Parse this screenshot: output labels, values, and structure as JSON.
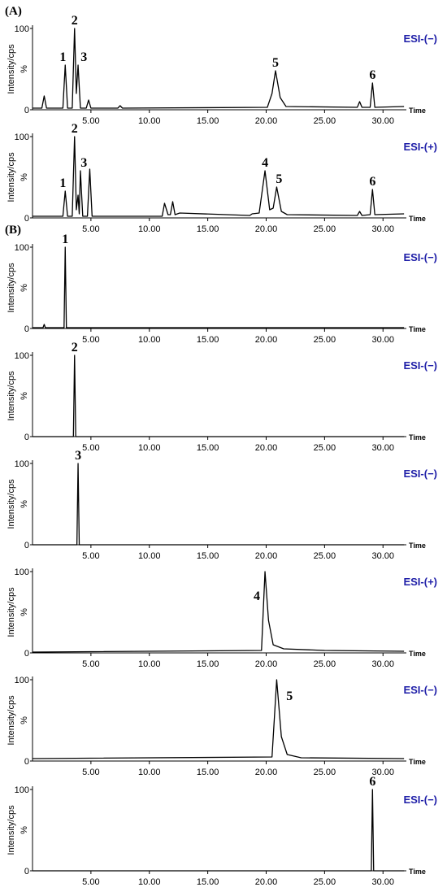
{
  "chart_data": [
    {
      "type": "line",
      "panel_label": "(A)",
      "mode": "ESI-(−)",
      "mode_color": "#1f1fa8",
      "ylabel": "Intensity/cps",
      "yunit": "%",
      "xlabel": "Time",
      "color": "#000000",
      "x": [
        0,
        0.8,
        1.0,
        1.2,
        2.6,
        2.8,
        3.0,
        3.4,
        3.6,
        3.75,
        3.9,
        4.1,
        4.6,
        4.8,
        5.0,
        7.3,
        7.5,
        7.7,
        20.1,
        20.5,
        20.8,
        21.2,
        21.7,
        27.8,
        28.0,
        28.2,
        28.9,
        29.1,
        29.3,
        31.8
      ],
      "values": [
        2,
        2,
        17,
        2,
        2,
        55,
        2,
        2,
        100,
        20,
        55,
        2,
        2,
        12,
        2,
        2,
        5,
        2,
        3,
        20,
        48,
        15,
        4,
        3,
        10,
        3,
        3,
        33,
        3,
        4
      ],
      "annotations": [
        {
          "text": "1",
          "x": 2.6,
          "y": 55
        },
        {
          "text": "2",
          "x": 3.6,
          "y": 100
        },
        {
          "text": "3",
          "x": 4.4,
          "y": 55
        },
        {
          "text": "5",
          "x": 20.8,
          "y": 48
        },
        {
          "text": "6",
          "x": 29.1,
          "y": 33
        }
      ],
      "xlim": [
        0,
        32
      ],
      "ylim": [
        0,
        100
      ],
      "yticks": [
        0,
        100
      ],
      "xticks": [
        {
          "value": 5,
          "label": "5.00"
        },
        {
          "value": 10,
          "label": "10.00"
        },
        {
          "value": 15,
          "label": "15.00"
        },
        {
          "value": 20,
          "label": "20.00"
        },
        {
          "value": 25,
          "label": "25.00"
        },
        {
          "value": 30,
          "label": "30.00"
        }
      ]
    },
    {
      "type": "line",
      "mode": "ESI-(+)",
      "mode_color": "#1f1fa8",
      "ylabel": "Intensity/cps",
      "yunit": "%",
      "xlabel": "Time",
      "color": "#000000",
      "x": [
        0,
        2.6,
        2.8,
        3.0,
        3.4,
        3.6,
        3.75,
        3.9,
        4.0,
        4.1,
        4.3,
        4.7,
        4.9,
        5.1,
        11.1,
        11.3,
        11.6,
        11.8,
        12.0,
        12.2,
        12.6,
        18.6,
        18.8,
        19.4,
        19.9,
        20.3,
        20.6,
        20.9,
        21.3,
        21.8,
        27.8,
        28.0,
        28.2,
        28.9,
        29.1,
        29.3,
        31.8
      ],
      "values": [
        2,
        2,
        33,
        2,
        2,
        100,
        10,
        28,
        5,
        58,
        2,
        2,
        60,
        2,
        2,
        18,
        4,
        4,
        20,
        4,
        6,
        3,
        5,
        6,
        58,
        10,
        12,
        38,
        8,
        4,
        3,
        8,
        3,
        4,
        35,
        4,
        5
      ],
      "annotations": [
        {
          "text": "1",
          "x": 2.6,
          "y": 33
        },
        {
          "text": "2",
          "x": 3.6,
          "y": 100
        },
        {
          "text": "3",
          "x": 4.4,
          "y": 58
        },
        {
          "text": "4",
          "x": 19.9,
          "y": 58
        },
        {
          "text": "5",
          "x": 21.1,
          "y": 38
        },
        {
          "text": "6",
          "x": 29.1,
          "y": 35
        }
      ],
      "xlim": [
        0,
        32
      ],
      "ylim": [
        0,
        100
      ],
      "yticks": [
        0,
        100
      ],
      "xticks": [
        {
          "value": 5,
          "label": "5.00"
        },
        {
          "value": 10,
          "label": "10.00"
        },
        {
          "value": 15,
          "label": "15.00"
        },
        {
          "value": 20,
          "label": "20.00"
        },
        {
          "value": 25,
          "label": "25.00"
        },
        {
          "value": 30,
          "label": "30.00"
        }
      ]
    },
    {
      "type": "line",
      "panel_label": "(B)",
      "mode": "ESI-(−)",
      "mode_color": "#1f1fa8",
      "ylabel": "Intensity/cps",
      "yunit": "%",
      "xlabel": "Time",
      "color": "#000000",
      "x": [
        0,
        0.9,
        1.0,
        1.1,
        2.7,
        2.8,
        2.9,
        31.8
      ],
      "values": [
        1,
        1,
        5,
        1,
        1,
        100,
        1,
        1
      ],
      "annotations": [
        {
          "text": "1",
          "x": 2.8,
          "y": 100
        }
      ],
      "xlim": [
        0,
        32
      ],
      "ylim": [
        0,
        100
      ],
      "yticks": [
        0,
        100
      ],
      "xticks": [
        {
          "value": 5,
          "label": "5.00"
        },
        {
          "value": 10,
          "label": "10.00"
        },
        {
          "value": 15,
          "label": "15.00"
        },
        {
          "value": 20,
          "label": "20.00"
        },
        {
          "value": 25,
          "label": "25.00"
        },
        {
          "value": 30,
          "label": "30.00"
        }
      ]
    },
    {
      "type": "line",
      "mode": "ESI-(−)",
      "mode_color": "#1f1fa8",
      "ylabel": "Intensity/cps",
      "yunit": "%",
      "xlabel": "Time",
      "color": "#000000",
      "x": [
        0,
        3.5,
        3.6,
        3.7,
        31.8
      ],
      "values": [
        0,
        0,
        100,
        0,
        0
      ],
      "annotations": [
        {
          "text": "2",
          "x": 3.6,
          "y": 100
        }
      ],
      "xlim": [
        0,
        32
      ],
      "ylim": [
        0,
        100
      ],
      "yticks": [
        0,
        100
      ],
      "xticks": [
        {
          "value": 5,
          "label": "5.00"
        },
        {
          "value": 10,
          "label": "10.00"
        },
        {
          "value": 15,
          "label": "15.00"
        },
        {
          "value": 20,
          "label": "20.00"
        },
        {
          "value": 25,
          "label": "25.00"
        },
        {
          "value": 30,
          "label": "30.00"
        }
      ]
    },
    {
      "type": "line",
      "mode": "ESI-(−)",
      "mode_color": "#1f1fa8",
      "ylabel": "Intensity/cps",
      "yunit": "%",
      "xlabel": "Time",
      "color": "#000000",
      "x": [
        0,
        3.8,
        3.9,
        4.0,
        31.8
      ],
      "values": [
        0,
        0,
        100,
        0,
        0
      ],
      "annotations": [
        {
          "text": "3",
          "x": 3.9,
          "y": 100
        }
      ],
      "xlim": [
        0,
        32
      ],
      "ylim": [
        0,
        100
      ],
      "yticks": [
        0,
        100
      ],
      "xticks": [
        {
          "value": 5,
          "label": "5.00"
        },
        {
          "value": 10,
          "label": "10.00"
        },
        {
          "value": 15,
          "label": "15.00"
        },
        {
          "value": 20,
          "label": "20.00"
        },
        {
          "value": 25,
          "label": "25.00"
        },
        {
          "value": 30,
          "label": "30.00"
        }
      ]
    },
    {
      "type": "line",
      "mode": "ESI-(+)",
      "mode_color": "#1f1fa8",
      "ylabel": "Intensity/cps",
      "yunit": "%",
      "xlabel": "Time",
      "color": "#000000",
      "x": [
        0,
        19.6,
        19.9,
        20.2,
        20.6,
        21.5,
        25.0,
        31.8
      ],
      "values": [
        1,
        3,
        100,
        40,
        10,
        5,
        3,
        2
      ],
      "annotations": [
        {
          "text": "4",
          "x": 19.2,
          "y": 60
        }
      ],
      "xlim": [
        0,
        32
      ],
      "ylim": [
        0,
        100
      ],
      "yticks": [
        0,
        100
      ],
      "xticks": [
        {
          "value": 5,
          "label": "5.00"
        },
        {
          "value": 10,
          "label": "10.00"
        },
        {
          "value": 15,
          "label": "15.00"
        },
        {
          "value": 20,
          "label": "20.00"
        },
        {
          "value": 25,
          "label": "25.00"
        },
        {
          "value": 30,
          "label": "30.00"
        }
      ]
    },
    {
      "type": "line",
      "mode": "ESI-(−)",
      "mode_color": "#1f1fa8",
      "ylabel": "Intensity/cps",
      "yunit": "%",
      "xlabel": "Time",
      "color": "#000000",
      "x": [
        0,
        20.5,
        20.9,
        21.3,
        21.8,
        23.0,
        31.8
      ],
      "values": [
        3,
        5,
        100,
        30,
        8,
        4,
        3
      ],
      "annotations": [
        {
          "text": "5",
          "x": 22.0,
          "y": 70
        }
      ],
      "xlim": [
        0,
        32
      ],
      "ylim": [
        0,
        100
      ],
      "yticks": [
        0,
        100
      ],
      "xticks": [
        {
          "value": 5,
          "label": "5.00"
        },
        {
          "value": 10,
          "label": "10.00"
        },
        {
          "value": 15,
          "label": "15.00"
        },
        {
          "value": 20,
          "label": "20.00"
        },
        {
          "value": 25,
          "label": "25.00"
        },
        {
          "value": 30,
          "label": "30.00"
        }
      ]
    },
    {
      "type": "line",
      "mode": "ESI-(−)",
      "mode_color": "#1f1fa8",
      "ylabel": "Intensity/cps",
      "yunit": "%",
      "xlabel": "Time",
      "color": "#000000",
      "x": [
        0,
        29.0,
        29.1,
        29.2,
        31.8
      ],
      "values": [
        0,
        0,
        100,
        0,
        0
      ],
      "annotations": [
        {
          "text": "6",
          "x": 29.1,
          "y": 100
        }
      ],
      "xlim": [
        0,
        32
      ],
      "ylim": [
        0,
        100
      ],
      "yticks": [
        0,
        100
      ],
      "xticks": [
        {
          "value": 5,
          "label": "5.00"
        },
        {
          "value": 10,
          "label": "10.00"
        },
        {
          "value": 15,
          "label": "15.00"
        },
        {
          "value": 20,
          "label": "20.00"
        },
        {
          "value": 25,
          "label": "25.00"
        },
        {
          "value": 30,
          "label": "30.00"
        }
      ]
    }
  ]
}
